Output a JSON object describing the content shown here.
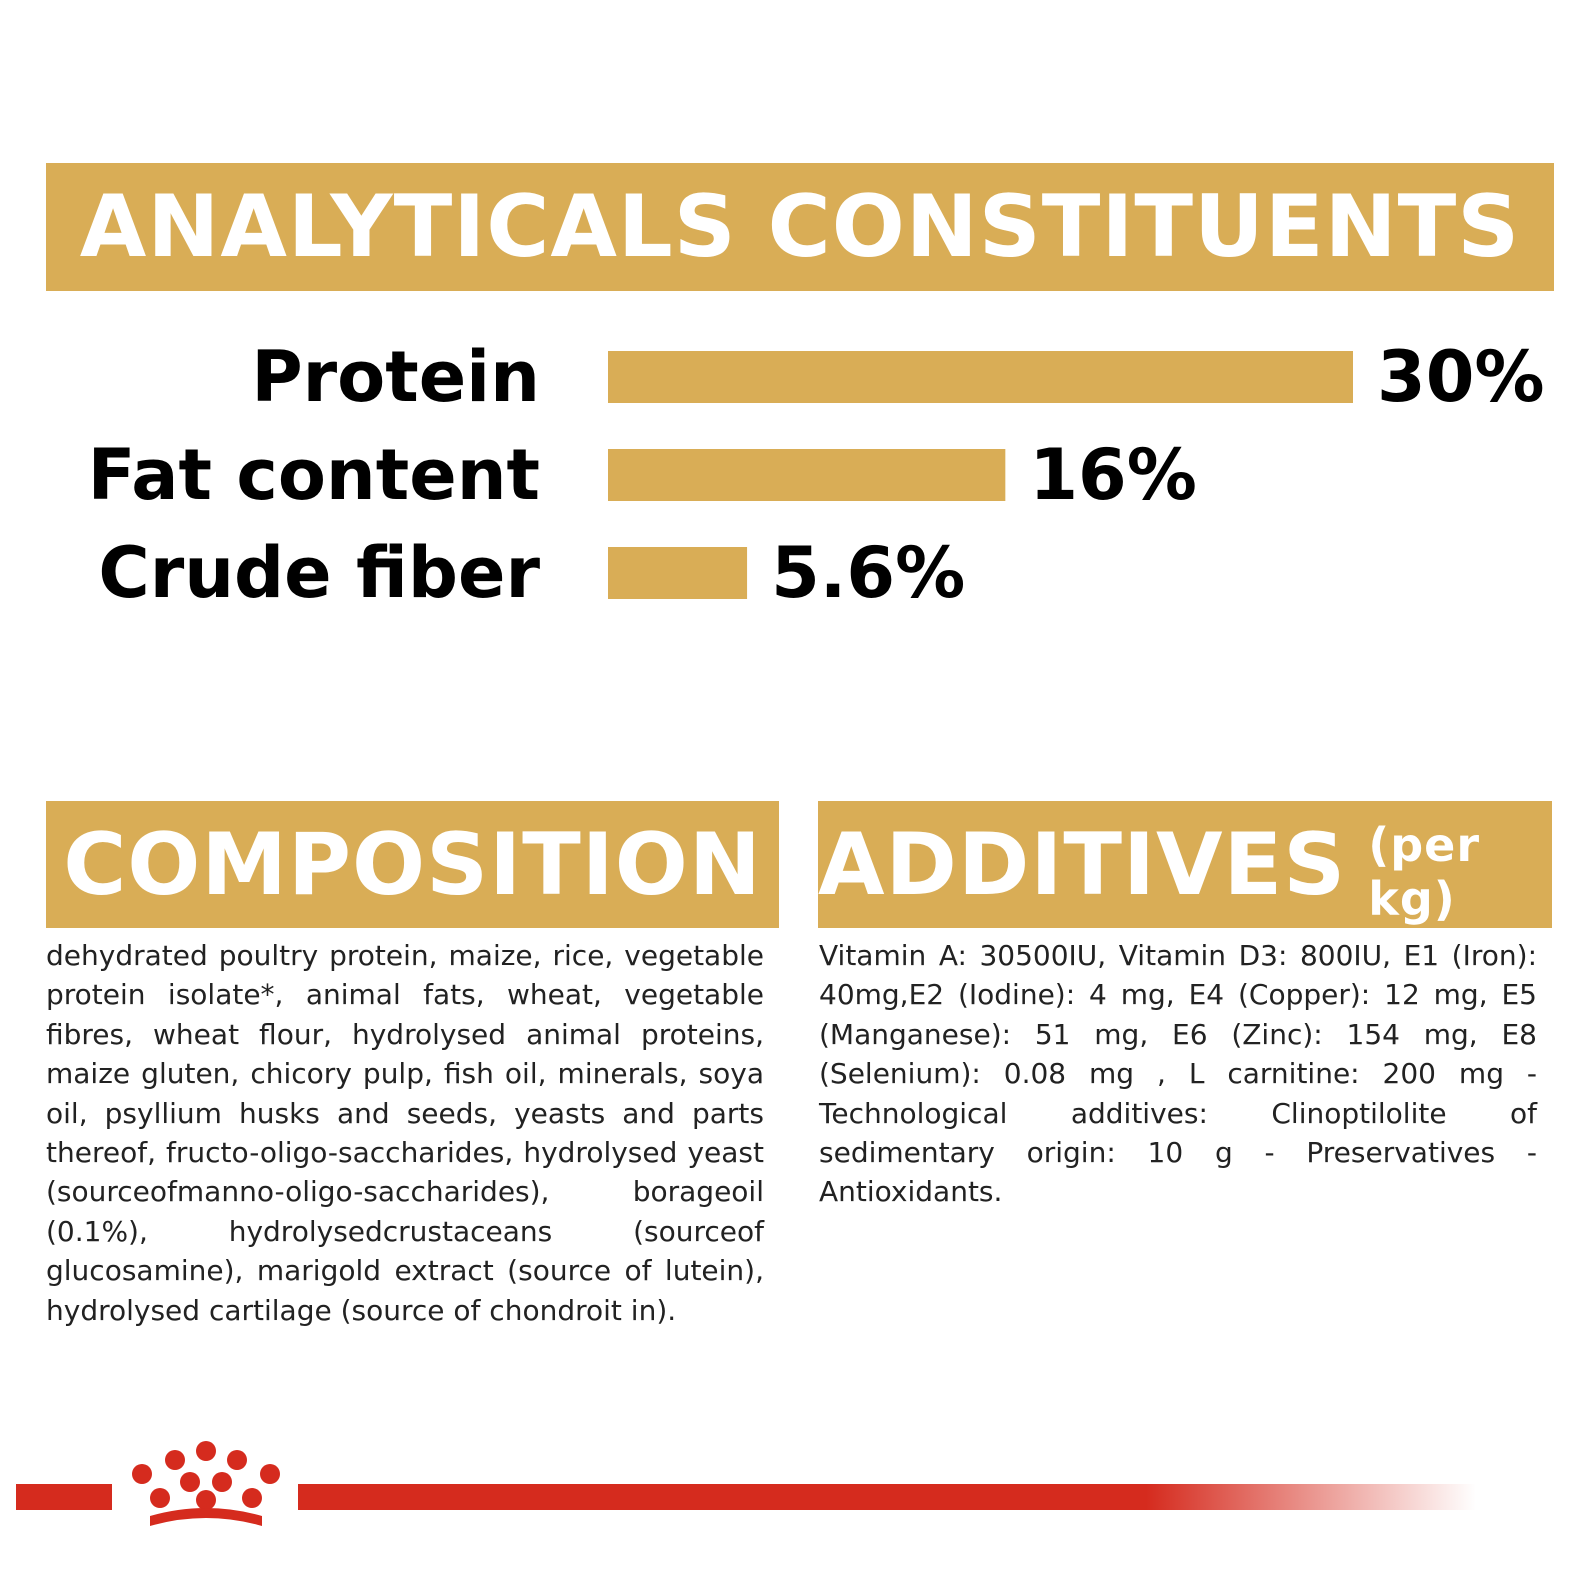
{
  "colors": {
    "accent": "#d9ad56",
    "text": "#000000",
    "brand_red": "#d52b1e"
  },
  "analytical": {
    "title": "ANALYTICALS CONSTITUENTS"
  },
  "chart_data": {
    "type": "bar",
    "orientation": "horizontal",
    "categories": [
      "Protein",
      "Fat content",
      "Crude fiber"
    ],
    "values": [
      30,
      16,
      5.6
    ],
    "value_labels": [
      "30%",
      "16%",
      "5.6%"
    ],
    "unit": "%"
  },
  "composition": {
    "title": "COMPOSITION",
    "text": "dehydrated poultry protein, maize, rice, vegetable protein isolate*, animal fats, wheat, vegetable fibres, wheat flour, hydrolysed animal proteins, maize gluten, chicory pulp, fish oil, minerals, soya oil, psyllium husks and seeds, yeasts and parts thereof, fructo-oligo-saccharides, hydrolysed yeast (sourceofmanno-oligo-saccharides), borageoil (0.1%), hydrolysedcrustaceans (sourceof glucosamine), marigold extract (source of lutein), hydrolysed cartilage (source of chondroit in)."
  },
  "additives": {
    "title": "ADDITIVES",
    "subtitle": "(per kg)",
    "text": "Vitamin A: 30500IU, Vitamin D3: 800IU, E1 (Iron): 40mg,E2 (Iodine): 4 mg, E4 (Copper): 12 mg, E5 (Manganese): 51 mg, E6 (Zinc): 154 mg, E8 (Selenium): 0.08 mg , L carnitine: 200 mg - Technological additives: Clinoptilolite of sedimentary origin: 10 g - Preservatives - Antioxidants."
  },
  "footer": {
    "logo_icon": "crown-logo-icon"
  }
}
